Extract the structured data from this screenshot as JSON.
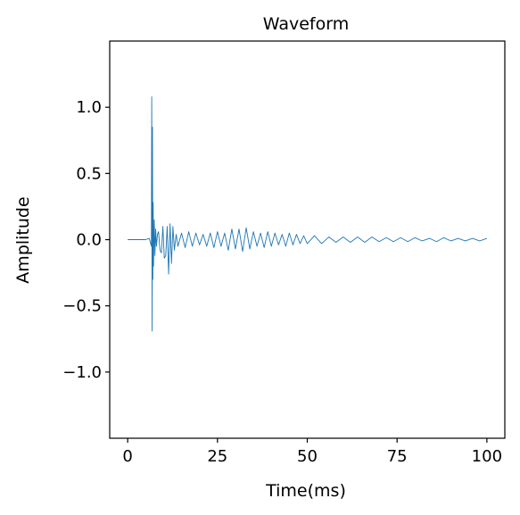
{
  "chart_data": {
    "type": "line",
    "title": "Waveform",
    "xlabel": "Time(ms)",
    "ylabel": "Amplitude",
    "xlim": [
      -5,
      105
    ],
    "ylim": [
      -1.5,
      1.5
    ],
    "xticks": [
      0,
      25,
      50,
      75,
      100
    ],
    "xtick_labels": [
      "0",
      "25",
      "50",
      "75",
      "100"
    ],
    "yticks": [
      1.0,
      0.5,
      0.0,
      -0.5,
      -1.0
    ],
    "ytick_labels": [
      "1.0",
      "0.5",
      "0.0",
      "−0.5",
      "−1.0"
    ],
    "grid": false,
    "legend": "none",
    "series": [
      {
        "color": "#1f77b4",
        "x": [
          0,
          3,
          5,
          6,
          6.6,
          6.7,
          6.8,
          6.9,
          7.0,
          7.1,
          7.2,
          7.4,
          7.6,
          7.8,
          8.0,
          8.3,
          8.6,
          9.0,
          9.4,
          9.8,
          10.2,
          10.6,
          11.0,
          11.4,
          11.8,
          12.2,
          12.6,
          13.0,
          13.5,
          14,
          15,
          16,
          17,
          18,
          19,
          20,
          21,
          22,
          23,
          24,
          25,
          26,
          27,
          28,
          29,
          30,
          31,
          32,
          33,
          34,
          35,
          36,
          37,
          38,
          39,
          40,
          41,
          42,
          43,
          44,
          45,
          46,
          47,
          48,
          49,
          50,
          52,
          54,
          56,
          58,
          60,
          62,
          64,
          66,
          68,
          70,
          72,
          74,
          76,
          78,
          80,
          82,
          84,
          86,
          88,
          90,
          92,
          94,
          96,
          98,
          100
        ],
        "y": [
          0,
          0,
          0,
          0.01,
          -0.05,
          1.08,
          -0.69,
          0.85,
          -0.3,
          0.28,
          -0.2,
          0.15,
          -0.12,
          0.08,
          -0.05,
          0.04,
          0.06,
          -0.08,
          -0.1,
          0.1,
          -0.14,
          -0.12,
          0.1,
          -0.26,
          0.12,
          -0.18,
          0.1,
          -0.08,
          0.04,
          -0.05,
          0.05,
          -0.06,
          0.06,
          -0.05,
          0.05,
          -0.04,
          0.04,
          -0.05,
          0.05,
          -0.06,
          0.06,
          -0.05,
          0.05,
          -0.08,
          0.08,
          -0.07,
          0.08,
          -0.09,
          0.09,
          -0.07,
          0.06,
          -0.05,
          0.05,
          -0.06,
          0.06,
          -0.05,
          0.05,
          -0.04,
          0.04,
          -0.05,
          0.05,
          -0.04,
          0.04,
          -0.03,
          0.03,
          -0.03,
          0.03,
          -0.03,
          0.02,
          -0.02,
          0.02,
          -0.02,
          0.02,
          -0.02,
          0.02,
          -0.015,
          0.015,
          -0.015,
          0.015,
          -0.015,
          0.015,
          -0.01,
          0.01,
          -0.015,
          0.015,
          -0.01,
          0.01,
          -0.01,
          0.01,
          -0.01,
          0.01
        ]
      }
    ]
  }
}
